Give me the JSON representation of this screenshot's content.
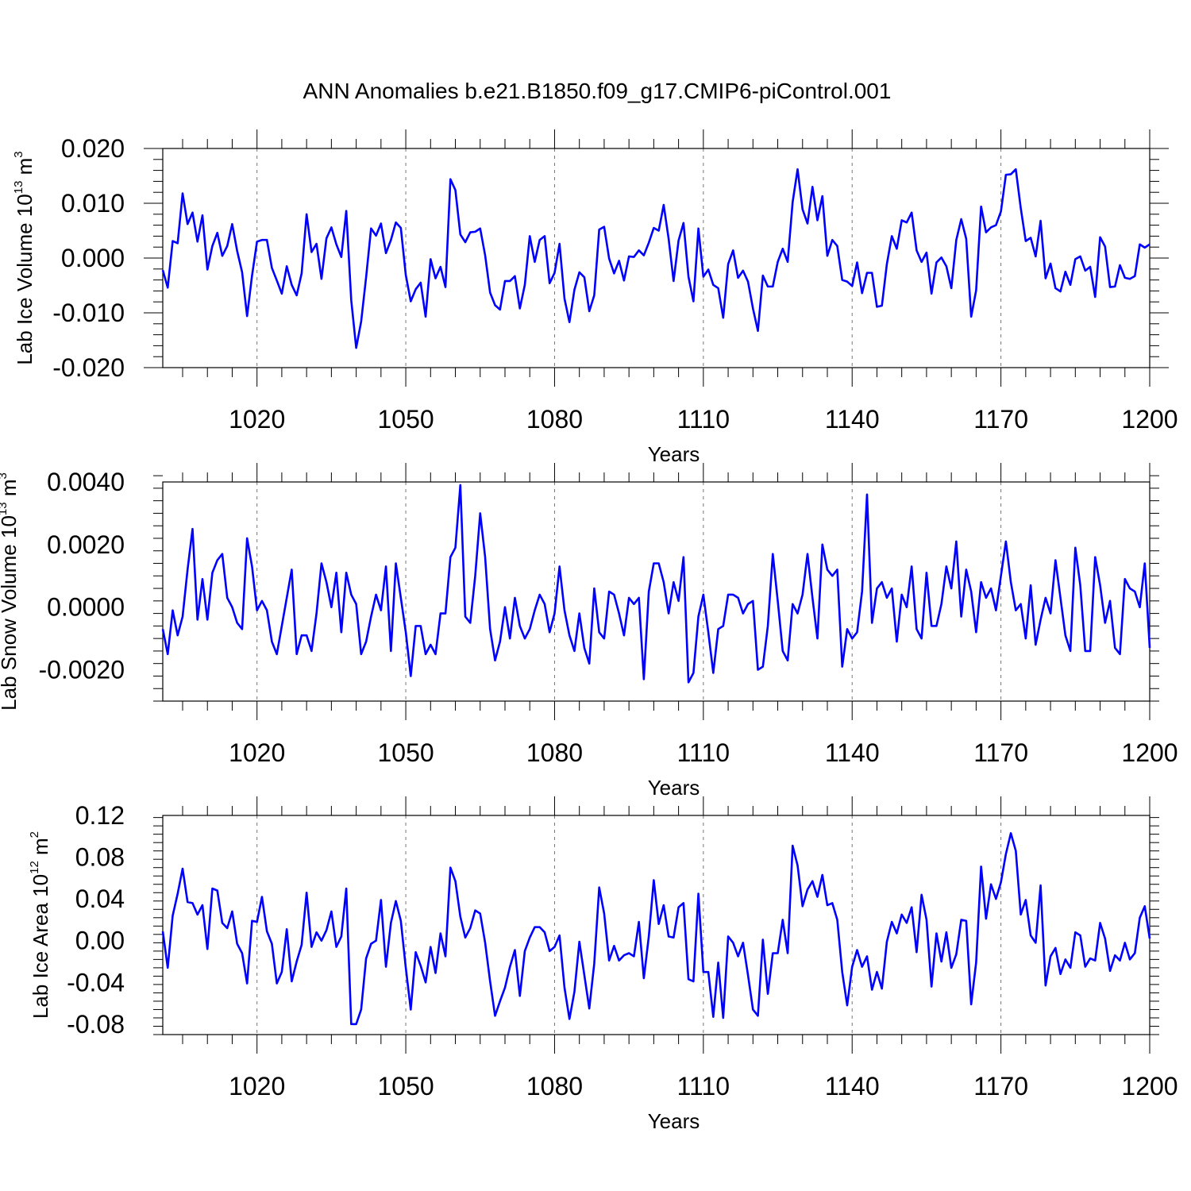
{
  "chart_data": {
    "title": "ANN Anomalies b.e21.B1850.f09_g17.CMIP6-piControl.001",
    "line_color": "#0000ff",
    "grid": true,
    "panels": [
      {
        "type": "line",
        "ylabel": "Lab Ice Volume 10",
        "ylabel_exp": "13",
        "ylabel_unit": " m",
        "ylabel_unit_exp": "3",
        "xlabel": "Years",
        "xlim": [
          1001,
          1200
        ],
        "ylim": [
          -0.02,
          0.02
        ],
        "yticks": [
          -0.02,
          -0.01,
          0.0,
          0.01,
          0.02
        ],
        "ytick_labels": [
          "-0.020",
          "-0.010",
          "0.000",
          "0.010",
          "0.020"
        ],
        "xticks": [
          1020,
          1050,
          1080,
          1110,
          1140,
          1170,
          1200
        ],
        "xtick_labels": [
          "1020",
          "1050",
          "1080",
          "1110",
          "1140",
          "1170",
          "1200"
        ],
        "x_start": 1001,
        "values": [
          -0.0022,
          -0.0054,
          0.0031,
          0.0027,
          0.0118,
          0.0062,
          0.0083,
          0.003,
          0.0078,
          -0.0021,
          0.0022,
          0.0046,
          0.0004,
          0.0022,
          0.0062,
          0.0013,
          -0.0026,
          -0.0106,
          -0.0032,
          0.003,
          0.0033,
          0.0033,
          -0.0018,
          -0.0041,
          -0.0065,
          -0.0015,
          -0.0049,
          -0.0068,
          -0.0028,
          0.008,
          0.0011,
          0.0026,
          -0.0038,
          0.0036,
          0.0056,
          0.0025,
          0.0002,
          0.0086,
          -0.0077,
          -0.0164,
          -0.0116,
          -0.0035,
          0.0054,
          0.0041,
          0.0063,
          0.0009,
          0.0033,
          0.0065,
          0.0055,
          -0.0031,
          -0.0079,
          -0.0057,
          -0.0045,
          -0.0107,
          -0.0002,
          -0.0037,
          -0.0016,
          -0.0053,
          0.0144,
          0.0124,
          0.0043,
          0.0029,
          0.0047,
          0.0048,
          0.0054,
          0.0005,
          -0.0063,
          -0.0086,
          -0.0094,
          -0.0042,
          -0.0042,
          -0.0033,
          -0.0092,
          -0.0049,
          0.004,
          -0.0007,
          0.0033,
          0.004,
          -0.0046,
          -0.0027,
          0.0026,
          -0.0074,
          -0.0117,
          -0.0058,
          -0.0026,
          -0.0035,
          -0.0097,
          -0.0068,
          0.0052,
          0.0057,
          -0.0001,
          -0.0028,
          -0.0005,
          -0.0041,
          0.0003,
          0.0002,
          0.0014,
          0.0005,
          0.0028,
          0.0055,
          0.005,
          0.0097,
          0.0035,
          -0.0042,
          0.0032,
          0.0064,
          -0.0034,
          -0.0079,
          0.0054,
          -0.0034,
          -0.0021,
          -0.0049,
          -0.0055,
          -0.0109,
          -0.0011,
          0.0014,
          -0.0036,
          -0.0023,
          -0.0043,
          -0.0092,
          -0.0133,
          -0.0032,
          -0.0052,
          -0.0052,
          -0.0007,
          0.0017,
          -0.0007,
          0.0102,
          0.0162,
          0.0089,
          0.0063,
          0.013,
          0.0069,
          0.0113,
          0.0004,
          0.0033,
          0.0022,
          -0.004,
          -0.0043,
          -0.0051,
          -0.0008,
          -0.0064,
          -0.0027,
          -0.0027,
          -0.0089,
          -0.0087,
          -0.0011,
          0.004,
          0.0017,
          0.0069,
          0.0065,
          0.0083,
          0.0014,
          -0.0007,
          0.001,
          -0.0065,
          -0.0008,
          0.0001,
          -0.0015,
          -0.0055,
          0.0033,
          0.0071,
          0.0035,
          -0.0107,
          -0.0059,
          0.0094,
          0.0047,
          0.0056,
          0.006,
          0.0085,
          0.0152,
          0.0153,
          0.0162,
          0.0091,
          0.0031,
          0.0037,
          0.0003,
          0.0068,
          -0.0037,
          -0.001,
          -0.0055,
          -0.0061,
          -0.0025,
          -0.0049,
          -0.0002,
          0.0003,
          -0.0023,
          -0.0016,
          -0.0071,
          0.0038,
          0.0021,
          -0.0053,
          -0.0052,
          -0.0013,
          -0.0036,
          -0.0038,
          -0.0033,
          0.0025,
          0.0019,
          0.0025
        ]
      },
      {
        "type": "line",
        "ylabel": "Lab Snow Volume 10",
        "ylabel_exp": "13",
        "ylabel_unit": " m",
        "ylabel_unit_exp": "3",
        "xlabel": "Years",
        "xlim": [
          1001,
          1200
        ],
        "ylim": [
          -0.003,
          0.004
        ],
        "yticks": [
          -0.002,
          0.0,
          0.002,
          0.004
        ],
        "ytick_labels": [
          "-0.0020",
          "0.0000",
          "0.0020",
          "0.0040"
        ],
        "xticks": [
          1020,
          1050,
          1080,
          1110,
          1140,
          1170,
          1200
        ],
        "xtick_labels": [
          "1020",
          "1050",
          "1080",
          "1110",
          "1140",
          "1170",
          "1200"
        ],
        "x_start": 1001,
        "values": [
          -0.0007,
          -0.0015,
          -0.0001,
          -0.0009,
          -0.0003,
          0.0012,
          0.0025,
          -0.0004,
          0.0009,
          -0.0004,
          0.0011,
          0.0015,
          0.0017,
          0.0003,
          0.0,
          -0.0005,
          -0.0007,
          0.0022,
          0.0013,
          -0.0001,
          0.0002,
          -0.0001,
          -0.0011,
          -0.0015,
          -0.0006,
          0.0003,
          0.0012,
          -0.0015,
          -0.0009,
          -0.0009,
          -0.0014,
          -0.0002,
          0.0014,
          0.0008,
          0.0,
          0.0011,
          -0.0008,
          0.0011,
          0.0004,
          0.0001,
          -0.0015,
          -0.0011,
          -0.0003,
          0.0004,
          -0.0001,
          0.0013,
          -0.0014,
          0.0014,
          0.0003,
          -0.0008,
          -0.0022,
          -0.0006,
          -0.0006,
          -0.0015,
          -0.0012,
          -0.0015,
          -0.0002,
          -0.0002,
          0.0016,
          0.0019,
          0.0039,
          -0.0003,
          -0.0005,
          0.001,
          0.003,
          0.0016,
          -0.0007,
          -0.0017,
          -0.0011,
          0.0,
          -0.001,
          0.0003,
          -0.0006,
          -0.001,
          -0.0007,
          -0.0001,
          0.0004,
          0.0001,
          -0.0008,
          -0.0002,
          0.0013,
          -0.0001,
          -0.0009,
          -0.0014,
          -0.0002,
          -0.0013,
          -0.0018,
          0.0006,
          -0.0008,
          -0.001,
          0.0005,
          0.0004,
          -0.0002,
          -0.0009,
          0.0003,
          0.0001,
          0.0003,
          -0.0023,
          0.0005,
          0.0014,
          0.0014,
          0.0008,
          -0.0002,
          0.0008,
          0.0002,
          0.0016,
          -0.0024,
          -0.0021,
          -0.0003,
          0.0004,
          -0.0008,
          -0.0021,
          -0.0007,
          -0.0006,
          0.0004,
          0.0004,
          0.0003,
          -0.0002,
          0.0001,
          0.0002,
          -0.002,
          -0.0019,
          -0.0006,
          0.0017,
          0.0002,
          -0.0014,
          -0.0017,
          0.0001,
          -0.0002,
          0.0004,
          0.0017,
          0.0003,
          -0.001,
          0.002,
          0.0012,
          0.001,
          0.0012,
          -0.0019,
          -0.0007,
          -0.001,
          -0.0008,
          0.0005,
          0.0036,
          -0.0005,
          0.0006,
          0.0008,
          0.0003,
          0.0006,
          -0.0011,
          0.0004,
          0.0,
          0.0013,
          -0.0007,
          -0.001,
          0.0011,
          -0.0006,
          -0.0006,
          0.0001,
          0.0013,
          0.0006,
          0.0021,
          -0.0003,
          0.0012,
          0.0005,
          -0.0008,
          0.0008,
          0.0003,
          0.0006,
          -0.0001,
          0.001,
          0.0021,
          0.0008,
          -0.0001,
          0.0001,
          -0.001,
          0.0007,
          -0.0012,
          -0.0004,
          0.0003,
          -0.0002,
          0.0015,
          0.0003,
          -0.0009,
          -0.0014,
          0.0019,
          0.0007,
          -0.0014,
          -0.0014,
          0.0016,
          0.0007,
          -0.0005,
          0.0002,
          -0.0013,
          -0.0015,
          0.0009,
          0.0006,
          0.0005,
          0.0,
          0.0014,
          -0.0013
        ]
      },
      {
        "type": "line",
        "ylabel": "Lab Ice Area 10",
        "ylabel_exp": "12",
        "ylabel_unit": " m",
        "ylabel_unit_exp": "2",
        "xlabel": "Years",
        "xlim": [
          1001,
          1200
        ],
        "ylim": [
          -0.09,
          0.12
        ],
        "yticks": [
          -0.08,
          -0.04,
          0.0,
          0.04,
          0.08,
          0.12
        ],
        "ytick_labels": [
          "-0.08",
          "-0.04",
          "0.00",
          "0.04",
          "0.08",
          "0.12"
        ],
        "xticks": [
          1020,
          1050,
          1080,
          1110,
          1140,
          1170,
          1200
        ],
        "xtick_labels": [
          "1020",
          "1050",
          "1080",
          "1110",
          "1140",
          "1170",
          "1200"
        ],
        "x_start": 1001,
        "values": [
          0.009,
          -0.026,
          0.024,
          0.045,
          0.069,
          0.037,
          0.036,
          0.025,
          0.034,
          -0.008,
          0.05,
          0.048,
          0.017,
          0.012,
          0.028,
          -0.003,
          -0.012,
          -0.041,
          0.019,
          0.018,
          0.042,
          0.009,
          -0.003,
          -0.041,
          -0.03,
          0.011,
          -0.039,
          -0.02,
          -0.004,
          0.046,
          -0.006,
          0.008,
          0.0,
          0.01,
          0.028,
          -0.006,
          0.004,
          0.05,
          -0.08,
          -0.08,
          -0.066,
          -0.017,
          -0.003,
          0.0,
          0.039,
          -0.025,
          0.017,
          0.038,
          0.019,
          -0.026,
          -0.066,
          -0.011,
          -0.024,
          -0.04,
          -0.006,
          -0.031,
          0.007,
          -0.015,
          0.07,
          0.057,
          0.023,
          0.003,
          0.012,
          0.029,
          0.026,
          -0.002,
          -0.039,
          -0.072,
          -0.058,
          -0.045,
          -0.025,
          -0.009,
          -0.053,
          -0.01,
          0.003,
          0.013,
          0.013,
          0.008,
          -0.01,
          -0.006,
          0.005,
          -0.045,
          -0.075,
          -0.049,
          -0.001,
          -0.033,
          -0.065,
          -0.022,
          0.051,
          0.026,
          -0.019,
          -0.005,
          -0.019,
          -0.014,
          -0.012,
          -0.015,
          0.018,
          -0.036,
          0.004,
          0.058,
          0.016,
          0.034,
          0.004,
          0.003,
          0.032,
          0.036,
          -0.037,
          -0.039,
          0.045,
          -0.03,
          -0.03,
          -0.073,
          -0.021,
          -0.074,
          0.004,
          -0.002,
          -0.015,
          -0.002,
          -0.033,
          -0.066,
          -0.072,
          0.001,
          -0.051,
          -0.012,
          -0.012,
          0.02,
          -0.012,
          0.091,
          0.072,
          0.033,
          0.049,
          0.057,
          0.042,
          0.063,
          0.034,
          0.036,
          0.02,
          -0.03,
          -0.062,
          -0.025,
          -0.009,
          -0.025,
          -0.015,
          -0.047,
          -0.03,
          -0.046,
          -0.001,
          0.018,
          0.007,
          0.025,
          0.017,
          0.032,
          -0.011,
          0.044,
          0.02,
          -0.044,
          0.007,
          -0.02,
          0.008,
          -0.026,
          -0.013,
          0.02,
          0.019,
          -0.061,
          -0.021,
          0.071,
          0.021,
          0.054,
          0.04,
          0.056,
          0.083,
          0.103,
          0.086,
          0.025,
          0.039,
          0.005,
          -0.002,
          0.053,
          -0.043,
          -0.015,
          -0.007,
          -0.032,
          -0.018,
          -0.026,
          0.008,
          0.005,
          -0.025,
          -0.017,
          -0.019,
          0.017,
          0.002,
          -0.029,
          -0.014,
          -0.019,
          -0.002,
          -0.018,
          -0.012,
          0.022,
          0.033,
          0.002
        ]
      }
    ]
  }
}
